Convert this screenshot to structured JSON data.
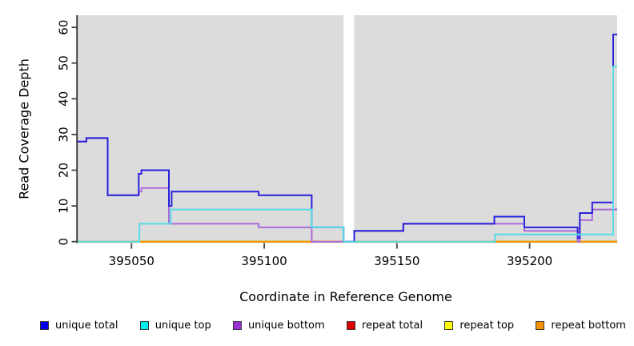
{
  "chart_data": {
    "type": "line",
    "subtype": "step-coverage",
    "title": "",
    "xlabel": "Coordinate in Reference Genome",
    "ylabel": "Read Coverage Depth",
    "xlim": [
      395029.7,
      395233
    ],
    "ylim": [
      0,
      63.4
    ],
    "x_ticks": [
      395050,
      395100,
      395150,
      395200
    ],
    "y_ticks": [
      0,
      10,
      20,
      30,
      40,
      50,
      60
    ],
    "grid": false,
    "legend_position": "bottom",
    "plot_bg_color": "#dcdcdc",
    "axis_color": "#333333",
    "tick_color": "#444444",
    "gap_region": [
      395129.9,
      395133.9
    ],
    "gap_color": "#ffffff",
    "draw_order": [
      3,
      4,
      5,
      2,
      0,
      1
    ],
    "series": [
      {
        "name": "unique total",
        "line_color": "#2822DB",
        "legend_color": "#0000EE",
        "points": [
          [
            395029.7,
            28
          ],
          [
            395033,
            29
          ],
          [
            395041,
            13
          ],
          [
            395052.7,
            19
          ],
          [
            395053.7,
            20
          ],
          [
            395064.1,
            10
          ],
          [
            395065.1,
            14
          ],
          [
            395097.9,
            13
          ],
          [
            395117.9,
            4
          ],
          [
            395129.9,
            0
          ],
          [
            395133.9,
            3
          ],
          [
            395152.4,
            5
          ],
          [
            395186.7,
            7
          ],
          [
            395198,
            4
          ],
          [
            395218.1,
            1
          ],
          [
            395218.9,
            8
          ],
          [
            395223.6,
            11
          ],
          [
            395231.5,
            58
          ]
        ]
      },
      {
        "name": "unique top",
        "line_color": "#55DCE6",
        "legend_color": "#00EEEE",
        "points": [
          [
            395029.7,
            0
          ],
          [
            395053,
            5
          ],
          [
            395064.8,
            9
          ],
          [
            395117.9,
            4
          ],
          [
            395129.9,
            0
          ],
          [
            395186.9,
            2
          ],
          [
            395231.5,
            49
          ]
        ]
      },
      {
        "name": "unique bottom",
        "line_color": "#AA6BD9",
        "legend_color": "#9B2FD6",
        "points": [
          [
            395029.7,
            28
          ],
          [
            395033,
            29
          ],
          [
            395041,
            13
          ],
          [
            395052.7,
            14
          ],
          [
            395053.7,
            15
          ],
          [
            395064.1,
            5
          ],
          [
            395097.9,
            4
          ],
          [
            395117.9,
            0
          ],
          [
            395133.9,
            3
          ],
          [
            395152.4,
            5
          ],
          [
            395198,
            3
          ],
          [
            395218.1,
            0
          ],
          [
            395218.9,
            6
          ],
          [
            395223.6,
            9
          ]
        ]
      },
      {
        "name": "repeat total",
        "line_color": "#E00000",
        "legend_color": "#E00000",
        "points": [
          [
            395029.7,
            0
          ]
        ]
      },
      {
        "name": "repeat top",
        "line_color": "#F5F500",
        "legend_color": "#FFFF00",
        "points": [
          [
            395029.7,
            0
          ]
        ]
      },
      {
        "name": "repeat bottom",
        "line_color": "#F59300",
        "legend_color": "#F59300",
        "points": [
          [
            395029.7,
            0
          ]
        ]
      }
    ]
  }
}
